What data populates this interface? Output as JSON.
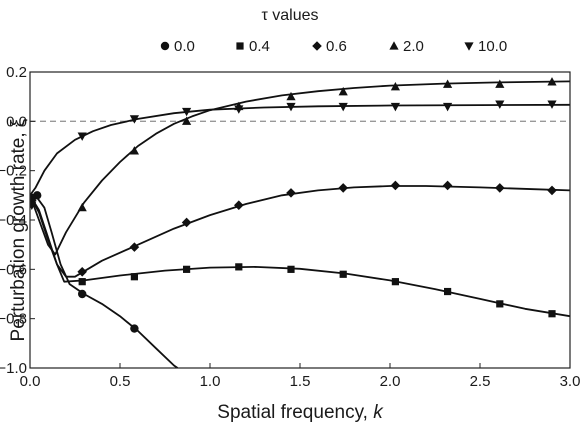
{
  "chart_data": {
    "type": "scatter",
    "title": "",
    "xlabel": "Spatial frequency, ",
    "xlabel_italic": "k",
    "ylabel": "Perturbation growth rate, ξ",
    "xlim": [
      0,
      3
    ],
    "ylim": [
      -1,
      0.2
    ],
    "xticks": [
      "0.0",
      "0.5",
      "1.0",
      "1.5",
      "2.0",
      "2.5",
      "3.0"
    ],
    "yticks": [
      "0.2",
      "0.0",
      "−0.2",
      "−0.4",
      "−0.6",
      "−0.8",
      "−1.0"
    ],
    "reference_line": {
      "y": 0,
      "style": "dashed"
    },
    "grid": false,
    "legend": {
      "title": "τ values",
      "position": "top-center"
    },
    "series": [
      {
        "name": "0.0",
        "marker": "circle",
        "points": [
          [
            0.01,
            -0.31
          ],
          [
            0.04,
            -0.3
          ],
          [
            0.29,
            -0.7
          ],
          [
            0.58,
            -0.84
          ]
        ],
        "curve": [
          [
            0.0,
            -0.3
          ],
          [
            0.04,
            -0.31
          ],
          [
            0.08,
            -0.35
          ],
          [
            0.12,
            -0.45
          ],
          [
            0.17,
            -0.58
          ],
          [
            0.22,
            -0.66
          ],
          [
            0.3,
            -0.7
          ],
          [
            0.4,
            -0.74
          ],
          [
            0.5,
            -0.79
          ],
          [
            0.6,
            -0.85
          ],
          [
            0.7,
            -0.92
          ],
          [
            0.8,
            -0.99
          ],
          [
            0.82,
            -1.0
          ]
        ]
      },
      {
        "name": "0.4",
        "marker": "square",
        "points": [
          [
            0.01,
            -0.31
          ],
          [
            0.29,
            -0.65
          ],
          [
            0.58,
            -0.63
          ],
          [
            0.87,
            -0.6
          ],
          [
            1.16,
            -0.59
          ],
          [
            1.45,
            -0.6
          ],
          [
            1.74,
            -0.62
          ],
          [
            2.03,
            -0.65
          ],
          [
            2.32,
            -0.69
          ],
          [
            2.61,
            -0.74
          ],
          [
            2.9,
            -0.78
          ]
        ],
        "curve": [
          [
            0.0,
            -0.3
          ],
          [
            0.05,
            -0.36
          ],
          [
            0.1,
            -0.47
          ],
          [
            0.15,
            -0.58
          ],
          [
            0.19,
            -0.65
          ],
          [
            0.3,
            -0.645
          ],
          [
            0.5,
            -0.625
          ],
          [
            0.75,
            -0.605
          ],
          [
            1.0,
            -0.593
          ],
          [
            1.25,
            -0.59
          ],
          [
            1.5,
            -0.598
          ],
          [
            1.75,
            -0.617
          ],
          [
            2.0,
            -0.645
          ],
          [
            2.25,
            -0.68
          ],
          [
            2.5,
            -0.72
          ],
          [
            2.75,
            -0.76
          ],
          [
            3.0,
            -0.79
          ]
        ]
      },
      {
        "name": "0.6",
        "marker": "diamond",
        "points": [
          [
            0.01,
            -0.32
          ],
          [
            0.29,
            -0.61
          ],
          [
            0.58,
            -0.51
          ],
          [
            0.87,
            -0.41
          ],
          [
            1.16,
            -0.34
          ],
          [
            1.45,
            -0.29
          ],
          [
            1.74,
            -0.27
          ],
          [
            2.03,
            -0.26
          ],
          [
            2.32,
            -0.26
          ],
          [
            2.61,
            -0.27
          ],
          [
            2.9,
            -0.28
          ]
        ],
        "curve": [
          [
            0.0,
            -0.3
          ],
          [
            0.05,
            -0.37
          ],
          [
            0.1,
            -0.48
          ],
          [
            0.15,
            -0.58
          ],
          [
            0.2,
            -0.63
          ],
          [
            0.25,
            -0.63
          ],
          [
            0.4,
            -0.565
          ],
          [
            0.6,
            -0.5
          ],
          [
            0.8,
            -0.435
          ],
          [
            1.0,
            -0.38
          ],
          [
            1.2,
            -0.335
          ],
          [
            1.4,
            -0.3
          ],
          [
            1.6,
            -0.28
          ],
          [
            1.8,
            -0.268
          ],
          [
            2.0,
            -0.262
          ],
          [
            2.2,
            -0.262
          ],
          [
            2.5,
            -0.268
          ],
          [
            2.8,
            -0.275
          ],
          [
            3.0,
            -0.28
          ]
        ]
      },
      {
        "name": "2.0",
        "marker": "triangle-up",
        "points": [
          [
            0.01,
            -0.33
          ],
          [
            0.29,
            -0.35
          ],
          [
            0.58,
            -0.12
          ],
          [
            0.87,
            0.0
          ],
          [
            1.16,
            0.06
          ],
          [
            1.45,
            0.1
          ],
          [
            1.74,
            0.12
          ],
          [
            2.03,
            0.14
          ],
          [
            2.32,
            0.15
          ],
          [
            2.61,
            0.15
          ],
          [
            2.9,
            0.16
          ]
        ],
        "curve": [
          [
            0.0,
            -0.3
          ],
          [
            0.05,
            -0.4
          ],
          [
            0.1,
            -0.5
          ],
          [
            0.14,
            -0.54
          ],
          [
            0.2,
            -0.45
          ],
          [
            0.3,
            -0.33
          ],
          [
            0.4,
            -0.24
          ],
          [
            0.5,
            -0.165
          ],
          [
            0.6,
            -0.1
          ],
          [
            0.7,
            -0.05
          ],
          [
            0.8,
            -0.01
          ],
          [
            0.9,
            0.02
          ],
          [
            1.0,
            0.045
          ],
          [
            1.2,
            0.08
          ],
          [
            1.4,
            0.105
          ],
          [
            1.6,
            0.122
          ],
          [
            1.8,
            0.135
          ],
          [
            2.0,
            0.145
          ],
          [
            2.3,
            0.153
          ],
          [
            2.6,
            0.158
          ],
          [
            3.0,
            0.162
          ]
        ]
      },
      {
        "name": "10.0",
        "marker": "triangle-down",
        "points": [
          [
            0.01,
            -0.34
          ],
          [
            0.29,
            -0.06
          ],
          [
            0.58,
            0.01
          ],
          [
            0.87,
            0.04
          ],
          [
            1.16,
            0.05
          ],
          [
            1.45,
            0.06
          ],
          [
            1.74,
            0.06
          ],
          [
            2.03,
            0.06
          ],
          [
            2.32,
            0.06
          ],
          [
            2.61,
            0.07
          ],
          [
            2.9,
            0.07
          ]
        ],
        "curve": [
          [
            0.0,
            -0.3
          ],
          [
            0.03,
            -0.27
          ],
          [
            0.08,
            -0.2
          ],
          [
            0.15,
            -0.13
          ],
          [
            0.25,
            -0.075
          ],
          [
            0.35,
            -0.04
          ],
          [
            0.45,
            -0.015
          ],
          [
            0.6,
            0.01
          ],
          [
            0.8,
            0.033
          ],
          [
            1.0,
            0.047
          ],
          [
            1.3,
            0.056
          ],
          [
            1.6,
            0.061
          ],
          [
            2.0,
            0.064
          ],
          [
            2.5,
            0.066
          ],
          [
            3.0,
            0.067
          ]
        ]
      }
    ]
  }
}
